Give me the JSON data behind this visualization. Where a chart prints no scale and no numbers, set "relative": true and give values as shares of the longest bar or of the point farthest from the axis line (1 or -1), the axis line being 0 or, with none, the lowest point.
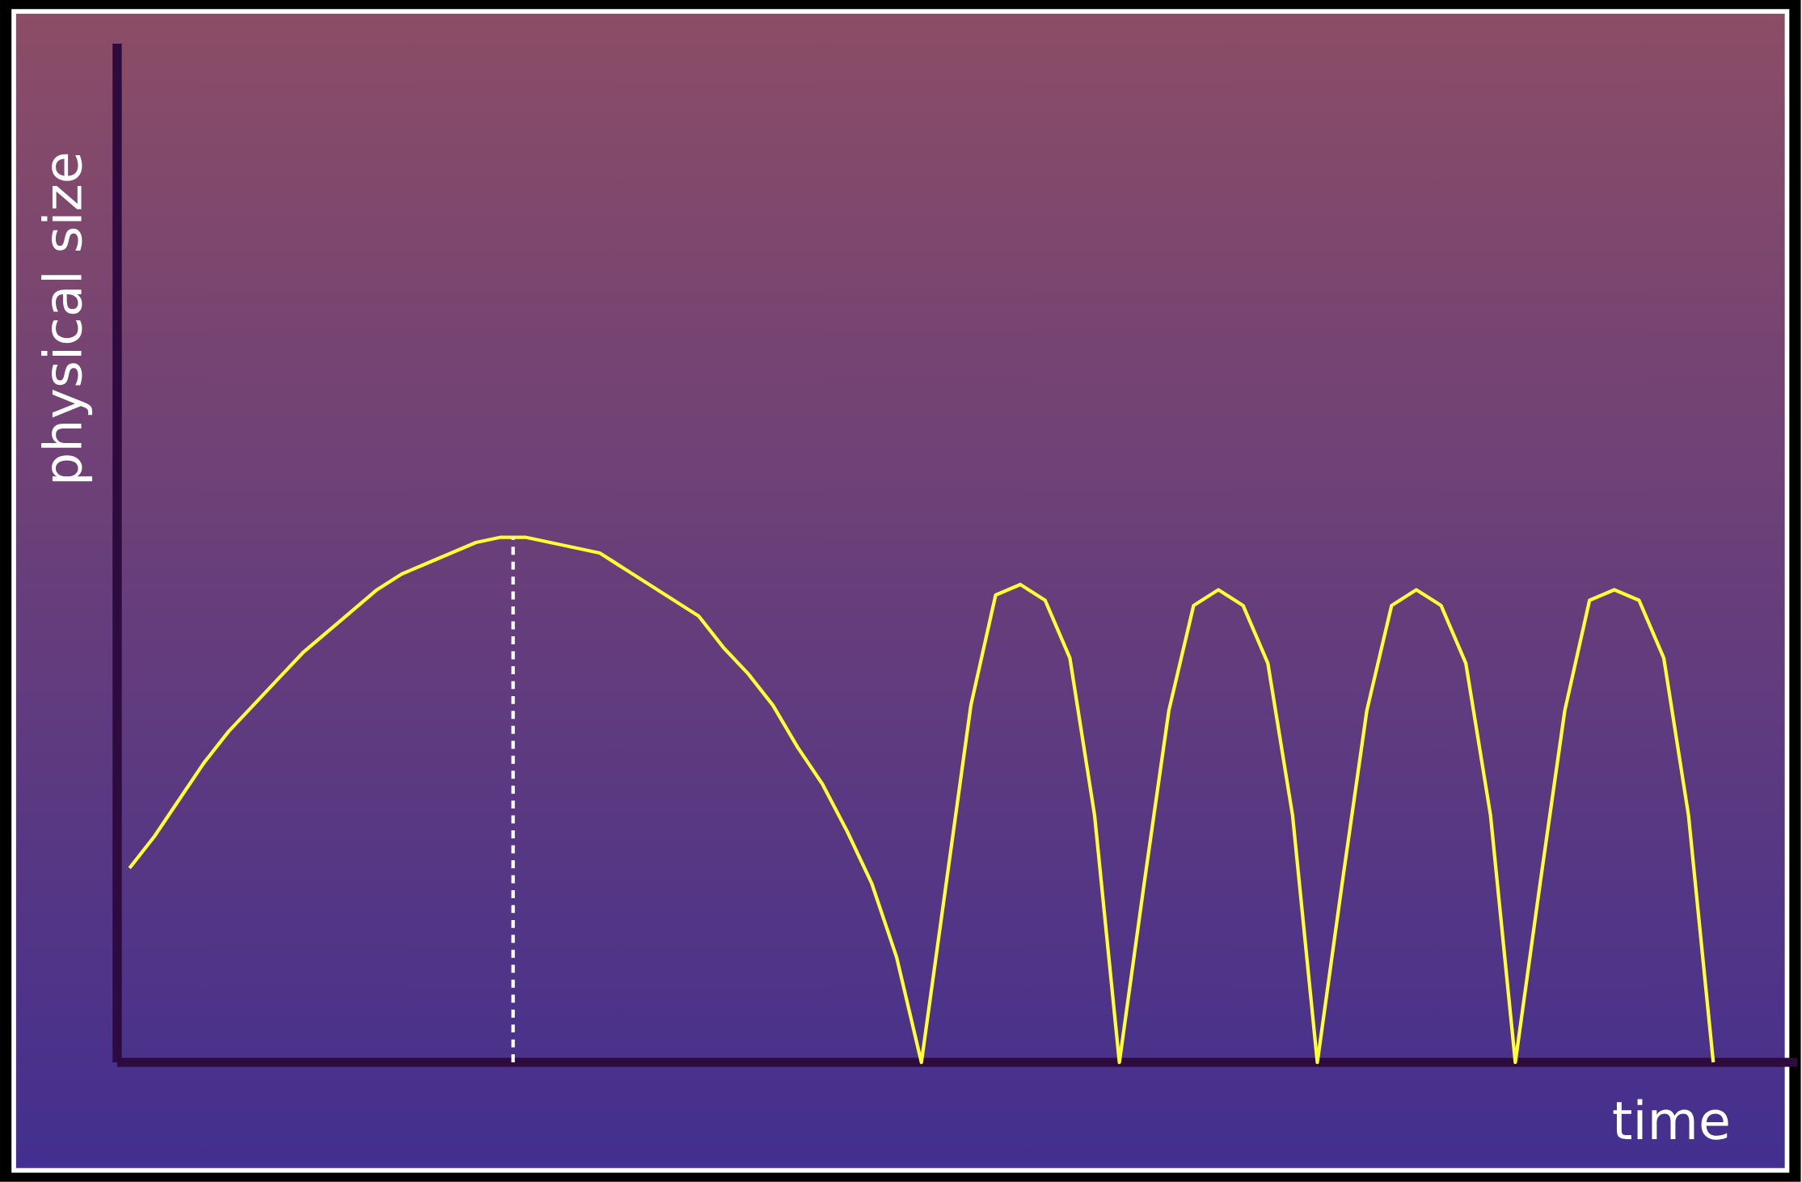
{
  "chart_data": {
    "type": "line",
    "relative": true,
    "xlabel": "time",
    "ylabel": "physical size",
    "marker": "none",
    "line_style": "solid",
    "categories": [
      null,
      null,
      null,
      null,
      null,
      null,
      null,
      null,
      null,
      null,
      null,
      null,
      null,
      null,
      null,
      null,
      null,
      null,
      null,
      null,
      null,
      null,
      null,
      null,
      null,
      null,
      null,
      null,
      null,
      null,
      null,
      null,
      null,
      null,
      null,
      null,
      null,
      null,
      null,
      null,
      null,
      null,
      null,
      null,
      null,
      null,
      null,
      null,
      null,
      null,
      null,
      null,
      null,
      null,
      null,
      null,
      null,
      null,
      null,
      null,
      null,
      null,
      null,
      null,
      null
    ],
    "series": [
      {
        "color": "#ffff33",
        "values": [
          0.37,
          0.43,
          0.5,
          0.57,
          0.63,
          0.68,
          0.73,
          0.78,
          0.82,
          0.86,
          0.9,
          0.93,
          0.95,
          0.97,
          0.99,
          1.0,
          1.0,
          0.99,
          0.98,
          0.97,
          0.94,
          0.91,
          0.88,
          0.85,
          0.79,
          0.74,
          0.68,
          0.6,
          0.53,
          0.44,
          0.34,
          0.2,
          0,
          0.34,
          0.68,
          0.89,
          0.91,
          0.88,
          0.77,
          0.47,
          0,
          0.34,
          0.67,
          0.87,
          0.9,
          0.87,
          0.76,
          0.47,
          0,
          0.34,
          0.67,
          0.87,
          0.9,
          0.87,
          0.76,
          0.47,
          0,
          0.34,
          0.67,
          0.88,
          0.9,
          0.88,
          0.77,
          0.47,
          0
        ]
      }
    ]
  }
}
